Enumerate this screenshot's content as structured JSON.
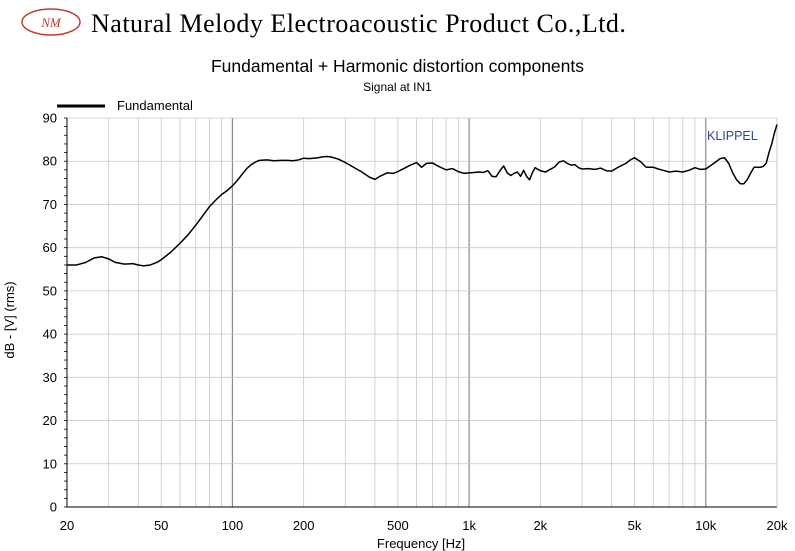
{
  "header": {
    "logo_text": "NM",
    "company": "Natural Melody Electroacoustic Product Co.,Ltd."
  },
  "chart_data": {
    "type": "line",
    "title": "Fundamental + Harmonic distortion components",
    "subtitle": "Signal at IN1",
    "xlabel": "Frequency [Hz]",
    "ylabel": "dB - [V] (rms)",
    "xscale": "log",
    "xlim": [
      20,
      20000
    ],
    "ylim": [
      0,
      90
    ],
    "grid": true,
    "legend": "top-left",
    "watermark": "KLIPPEL",
    "x_ticks": [
      {
        "value": 20,
        "label": "20"
      },
      {
        "value": 50,
        "label": "50"
      },
      {
        "value": 100,
        "label": "100"
      },
      {
        "value": 200,
        "label": "200"
      },
      {
        "value": 500,
        "label": "500"
      },
      {
        "value": 1000,
        "label": "1k"
      },
      {
        "value": 2000,
        "label": "2k"
      },
      {
        "value": 5000,
        "label": "5k"
      },
      {
        "value": 10000,
        "label": "10k"
      },
      {
        "value": 20000,
        "label": "20k"
      }
    ],
    "y_ticks": [
      0,
      10,
      20,
      30,
      40,
      50,
      60,
      70,
      80,
      90
    ],
    "series": [
      {
        "name": "Fundamental",
        "color": "#000000",
        "x": [
          20,
          22,
          24,
          26,
          28,
          30,
          32,
          35,
          38,
          40,
          42,
          45,
          48,
          50,
          55,
          60,
          65,
          70,
          75,
          80,
          85,
          90,
          95,
          100,
          105,
          110,
          115,
          120,
          125,
          130,
          140,
          150,
          160,
          170,
          180,
          190,
          200,
          210,
          220,
          230,
          240,
          250,
          260,
          280,
          300,
          320,
          350,
          380,
          400,
          420,
          450,
          480,
          500,
          530,
          560,
          600,
          630,
          660,
          700,
          750,
          800,
          850,
          900,
          950,
          1000,
          1050,
          1100,
          1150,
          1200,
          1250,
          1300,
          1350,
          1400,
          1450,
          1500,
          1550,
          1600,
          1650,
          1700,
          1750,
          1800,
          1850,
          1900,
          2000,
          2100,
          2200,
          2300,
          2400,
          2500,
          2600,
          2700,
          2800,
          2900,
          3000,
          3200,
          3400,
          3600,
          3800,
          4000,
          4200,
          4400,
          4600,
          4800,
          5000,
          5300,
          5600,
          6000,
          6300,
          6600,
          7000,
          7500,
          8000,
          8500,
          9000,
          9500,
          10000,
          10500,
          11000,
          11500,
          12000,
          12500,
          13000,
          13500,
          14000,
          14500,
          15000,
          15500,
          16000,
          16500,
          17000,
          17500,
          18000,
          18500,
          19000,
          19500,
          20000
        ],
        "values": [
          56,
          56,
          56.6,
          57.6,
          57.9,
          57.4,
          56.6,
          56.2,
          56.3,
          56,
          55.8,
          56,
          56.6,
          57.2,
          59,
          61,
          63,
          65.2,
          67.4,
          69.5,
          71,
          72.3,
          73.2,
          74.3,
          75.6,
          77,
          78.3,
          79.2,
          79.8,
          80.2,
          80.3,
          80.1,
          80.2,
          80.2,
          80.1,
          80.3,
          80.7,
          80.6,
          80.7,
          80.8,
          81,
          81.1,
          81,
          80.5,
          79.7,
          78.8,
          77.6,
          76.3,
          75.8,
          76.5,
          77.3,
          77.2,
          77.6,
          78.3,
          79,
          79.7,
          78.6,
          79.5,
          79.6,
          78.7,
          78,
          78.3,
          77.6,
          77.2,
          77.3,
          77.4,
          77.5,
          77.4,
          77.8,
          76.5,
          76.4,
          77.8,
          78.9,
          77.3,
          76.7,
          77.2,
          77.5,
          76.5,
          77.9,
          76.5,
          75.7,
          77.3,
          78.5,
          77.8,
          77.5,
          78.1,
          78.7,
          79.8,
          80.1,
          79.5,
          79.1,
          79.2,
          78.5,
          78.2,
          78.3,
          78.1,
          78.4,
          77.8,
          77.7,
          78.4,
          79,
          79.5,
          80.3,
          80.8,
          79.9,
          78.6,
          78.6,
          78.2,
          77.9,
          77.5,
          77.7,
          77.5,
          77.9,
          78.5,
          78.1,
          78.2,
          79,
          79.8,
          80.6,
          80.8,
          79.5,
          77.3,
          75.7,
          74.8,
          74.8,
          75.8,
          77.3,
          78.6,
          78.6,
          78.6,
          78.8,
          79.5,
          82,
          84,
          86.5,
          88.5
        ]
      }
    ]
  }
}
